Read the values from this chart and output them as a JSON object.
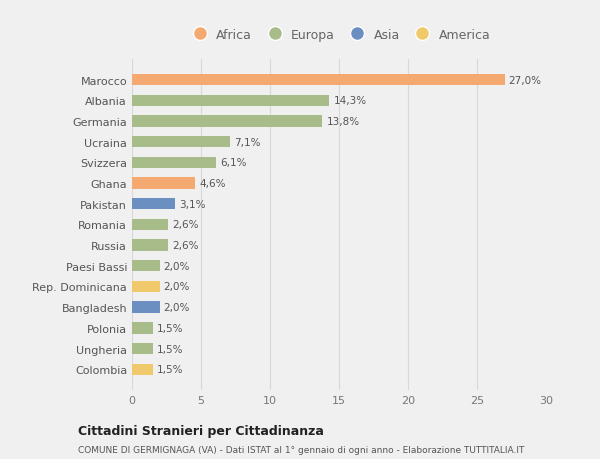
{
  "countries": [
    "Marocco",
    "Albania",
    "Germania",
    "Ucraina",
    "Svizzera",
    "Ghana",
    "Pakistan",
    "Romania",
    "Russia",
    "Paesi Bassi",
    "Rep. Dominicana",
    "Bangladesh",
    "Polonia",
    "Ungheria",
    "Colombia"
  ],
  "values": [
    27.0,
    14.3,
    13.8,
    7.1,
    6.1,
    4.6,
    3.1,
    2.6,
    2.6,
    2.0,
    2.0,
    2.0,
    1.5,
    1.5,
    1.5
  ],
  "labels": [
    "27,0%",
    "14,3%",
    "13,8%",
    "7,1%",
    "6,1%",
    "4,6%",
    "3,1%",
    "2,6%",
    "2,6%",
    "2,0%",
    "2,0%",
    "2,0%",
    "1,5%",
    "1,5%",
    "1,5%"
  ],
  "continents": [
    "Africa",
    "Europa",
    "Europa",
    "Europa",
    "Europa",
    "Africa",
    "Asia",
    "Europa",
    "Europa",
    "Europa",
    "America",
    "Asia",
    "Europa",
    "Europa",
    "America"
  ],
  "colors": {
    "Africa": "#F4A970",
    "Europa": "#A8BC8A",
    "Asia": "#6A8FC0",
    "America": "#F0C96A"
  },
  "legend_order": [
    "Africa",
    "Europa",
    "Asia",
    "America"
  ],
  "title1": "Cittadini Stranieri per Cittadinanza",
  "title2": "COMUNE DI GERMIGNAGA (VA) - Dati ISTAT al 1° gennaio di ogni anno - Elaborazione TUTTITALIA.IT",
  "xlim": [
    0,
    30
  ],
  "xticks": [
    0,
    5,
    10,
    15,
    20,
    25,
    30
  ],
  "bg_color": "#f0f0f0",
  "grid_color": "#d8d8d8",
  "bar_height": 0.55
}
